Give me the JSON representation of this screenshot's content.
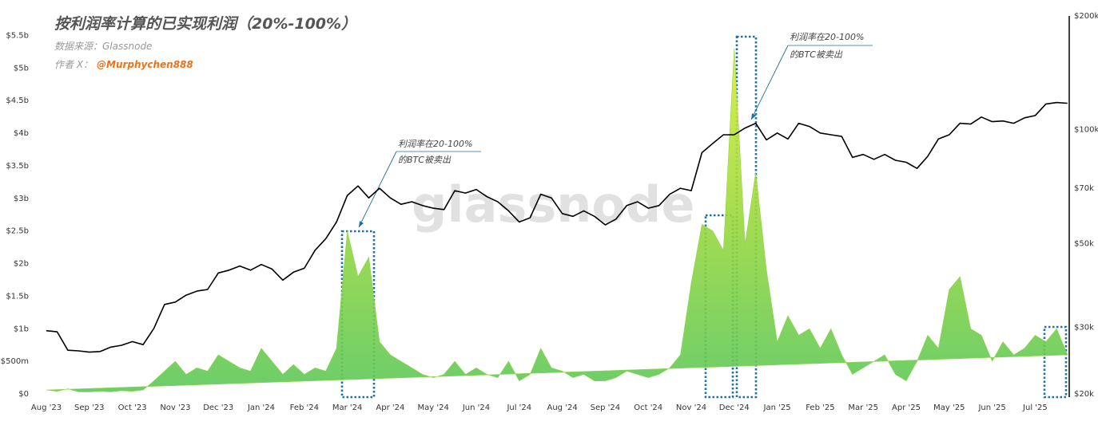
{
  "chart_data": {
    "type": "combo",
    "title": "按利润率计算的已实现利润（20%-100%）",
    "subtitle": "数据来源：Glassnode",
    "author_label": "作者 X：",
    "author": "@Murphychen888",
    "watermark": "glassnode",
    "annotations": [
      [
        "利润率在20-100%",
        "的BTC被卖出"
      ],
      [
        "利润率在20-100%",
        "的BTC被卖出"
      ]
    ],
    "categories": [
      "Aug '23",
      null,
      null,
      null,
      "Sep '23",
      null,
      null,
      null,
      "Oct '23",
      null,
      null,
      null,
      "Nov '23",
      null,
      null,
      null,
      "Dec '23",
      null,
      null,
      null,
      "Jan '24",
      null,
      null,
      null,
      "Feb '24",
      null,
      null,
      null,
      "Mar '24",
      null,
      null,
      null,
      "Apr '24",
      null,
      null,
      null,
      "May '24",
      null,
      null,
      null,
      "Jun '24",
      null,
      null,
      null,
      "Jul '24",
      null,
      null,
      null,
      "Aug '24",
      null,
      null,
      null,
      "Sep '24",
      null,
      null,
      null,
      "Oct '24",
      null,
      null,
      null,
      "Nov '24",
      null,
      null,
      null,
      "Dec '24",
      null,
      null,
      null,
      "Jan '25",
      null,
      null,
      null,
      "Feb '25",
      null,
      null,
      null,
      "Mar '25",
      null,
      null,
      null,
      "Apr '25",
      null,
      null,
      null,
      "May '25",
      null,
      null,
      null,
      "Jun '25",
      null,
      null,
      null,
      "Jul '25",
      null,
      null,
      null
    ],
    "ylim": [
      0,
      5800000000
    ],
    "yticks": [
      {
        "value": 0,
        "label": "$0"
      },
      {
        "value": 500000000,
        "label": "$500m"
      },
      {
        "value": 1000000000,
        "label": "$1b"
      },
      {
        "value": 1500000000,
        "label": "$1.5b"
      },
      {
        "value": 2000000000,
        "label": "$2b"
      },
      {
        "value": 2500000000,
        "label": "$2.5b"
      },
      {
        "value": 3000000000,
        "label": "$3b"
      },
      {
        "value": 3500000000,
        "label": "$3.5b"
      },
      {
        "value": 4000000000,
        "label": "$4b"
      },
      {
        "value": 4500000000,
        "label": "$4.5b"
      },
      {
        "value": 5000000000,
        "label": "$5b"
      },
      {
        "value": 5500000000,
        "label": "$5.5b"
      }
    ],
    "y2lim": [
      20000,
      200000
    ],
    "y2log": true,
    "y2ticks": [
      {
        "value": 20000,
        "label": "$20k"
      },
      {
        "value": 30000,
        "label": "$30k"
      },
      {
        "value": 50000,
        "label": "$50k"
      },
      {
        "value": 70000,
        "label": "$70k"
      },
      {
        "value": 100000,
        "label": "$100k"
      },
      {
        "value": 200000,
        "label": "$200k"
      }
    ],
    "series": [
      {
        "type": "area",
        "color": "#8fd448",
        "values": [
          60000000,
          40000000,
          80000000,
          30000000,
          30000000,
          40000000,
          30000000,
          50000000,
          40000000,
          60000000,
          200000000,
          350000000,
          500000000,
          300000000,
          400000000,
          350000000,
          600000000,
          500000000,
          400000000,
          350000000,
          700000000,
          500000000,
          300000000,
          450000000,
          300000000,
          400000000,
          350000000,
          700000000,
          2500000000,
          1800000000,
          2100000000,
          800000000,
          600000000,
          500000000,
          400000000,
          300000000,
          250000000,
          300000000,
          500000000,
          300000000,
          400000000,
          300000000,
          250000000,
          500000000,
          200000000,
          300000000,
          700000000,
          400000000,
          350000000,
          250000000,
          300000000,
          200000000,
          200000000,
          250000000,
          350000000,
          300000000,
          250000000,
          300000000,
          400000000,
          600000000,
          1700000000,
          2600000000,
          2500000000,
          2200000000,
          5300000000,
          2300000000,
          3400000000,
          1900000000,
          800000000,
          1200000000,
          900000000,
          1000000000,
          700000000,
          1000000000,
          600000000,
          300000000,
          400000000,
          500000000,
          600000000,
          300000000,
          200000000,
          500000000,
          900000000,
          700000000,
          1600000000,
          1800000000,
          1000000000,
          900000000,
          500000000,
          800000000,
          600000000,
          700000000,
          900000000,
          800000000,
          1000000000,
          600000000
        ]
      },
      {
        "type": "line",
        "axis": "y2",
        "color": "#000000",
        "values": [
          29400,
          29200,
          26100,
          26000,
          25800,
          25900,
          26600,
          26900,
          27500,
          27000,
          29800,
          34500,
          35000,
          36500,
          37400,
          37800,
          41800,
          42500,
          43600,
          42500,
          44000,
          42800,
          40000,
          42000,
          43000,
          48000,
          51500,
          57000,
          67000,
          71000,
          66000,
          70000,
          66000,
          63500,
          64500,
          63000,
          62000,
          61500,
          69000,
          68000,
          69500,
          66500,
          64500,
          61000,
          57000,
          58500,
          67500,
          66000,
          60000,
          59000,
          61000,
          59000,
          56000,
          58000,
          63000,
          64500,
          62000,
          63000,
          67500,
          70000,
          69000,
          87000,
          92000,
          97000,
          97000,
          101000,
          104000,
          94000,
          98000,
          94500,
          104000,
          102000,
          98000,
          97000,
          96000,
          84500,
          86000,
          83500,
          86000,
          83000,
          82000,
          79000,
          85000,
          94500,
          97000,
          104000,
          103500,
          108000,
          105000,
          105500,
          104000,
          107500,
          109000,
          117000,
          118000,
          117500
        ]
      }
    ]
  }
}
